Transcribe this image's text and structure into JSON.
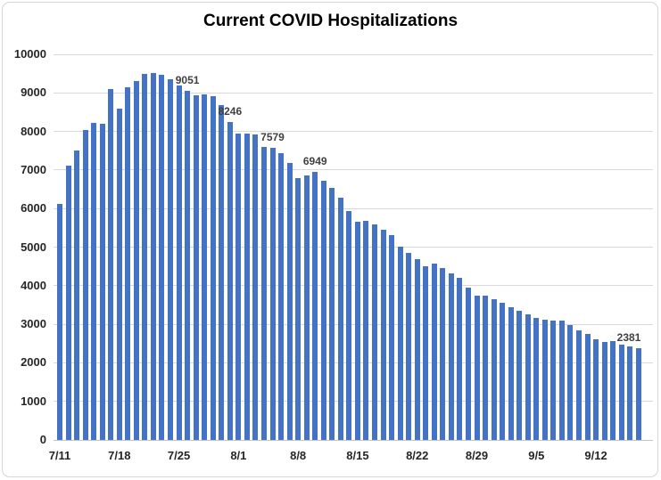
{
  "chart_style": {
    "bar_color": "#4472c4",
    "gridline_color": "#d9d9d9",
    "axis_text_color": "#262626",
    "data_label_color": "#404040",
    "title_color": "#000000"
  },
  "chart_data": {
    "type": "bar",
    "title": "Current COVID Hospitalizations",
    "xlabel": "",
    "ylabel": "",
    "ylim": [
      0,
      10000
    ],
    "y_tick_step": 1000,
    "y_tick_labels": [
      "0",
      "1000",
      "2000",
      "3000",
      "4000",
      "5000",
      "6000",
      "7000",
      "8000",
      "9000",
      "10000"
    ],
    "x_tick_labels": [
      "7/11",
      "7/18",
      "7/25",
      "8/1",
      "8/8",
      "8/15",
      "8/22",
      "8/29",
      "9/5",
      "9/12"
    ],
    "x_tick_interval": 7,
    "grid": true,
    "legend": "none",
    "categories": [
      "7/11",
      "7/12",
      "7/13",
      "7/14",
      "7/15",
      "7/16",
      "7/17",
      "7/18",
      "7/19",
      "7/20",
      "7/21",
      "7/22",
      "7/23",
      "7/24",
      "7/25",
      "7/26",
      "7/27",
      "7/28",
      "7/29",
      "7/30",
      "7/31",
      "8/1",
      "8/2",
      "8/3",
      "8/4",
      "8/5",
      "8/6",
      "8/7",
      "8/8",
      "8/9",
      "8/10",
      "8/11",
      "8/12",
      "8/13",
      "8/14",
      "8/15",
      "8/16",
      "8/17",
      "8/18",
      "8/19",
      "8/20",
      "8/21",
      "8/22",
      "8/23",
      "8/24",
      "8/25",
      "8/26",
      "8/27",
      "8/28",
      "8/29",
      "8/30",
      "8/31",
      "9/1",
      "9/2",
      "9/3",
      "9/4",
      "9/5",
      "9/6",
      "9/7",
      "9/8",
      "9/9",
      "9/10",
      "9/11",
      "9/12",
      "9/13",
      "9/14",
      "9/15",
      "9/16",
      "9/17"
    ],
    "values": [
      6110,
      7110,
      7500,
      8030,
      8220,
      8190,
      9100,
      8600,
      9140,
      9310,
      9500,
      9520,
      9460,
      9360,
      9190,
      9051,
      8930,
      8960,
      8910,
      8680,
      8246,
      7950,
      7950,
      7920,
      7600,
      7579,
      7430,
      7190,
      6790,
      6850,
      6949,
      6730,
      6540,
      6290,
      5930,
      5660,
      5680,
      5600,
      5450,
      5310,
      5010,
      4840,
      4690,
      4500,
      4570,
      4460,
      4330,
      4200,
      3950,
      3750,
      3730,
      3640,
      3560,
      3430,
      3350,
      3250,
      3170,
      3110,
      3090,
      3090,
      2990,
      2840,
      2740,
      2610,
      2550,
      2570,
      2460,
      2420,
      2381
    ],
    "data_labels": [
      {
        "category": "7/26",
        "index": 15,
        "text": "9051"
      },
      {
        "category": "7/31",
        "index": 20,
        "text": "8246"
      },
      {
        "category": "8/5",
        "index": 25,
        "text": "7579"
      },
      {
        "category": "8/10",
        "index": 30,
        "text": "6949"
      },
      {
        "category": "9/17",
        "index": 68,
        "text": "2381"
      }
    ]
  }
}
